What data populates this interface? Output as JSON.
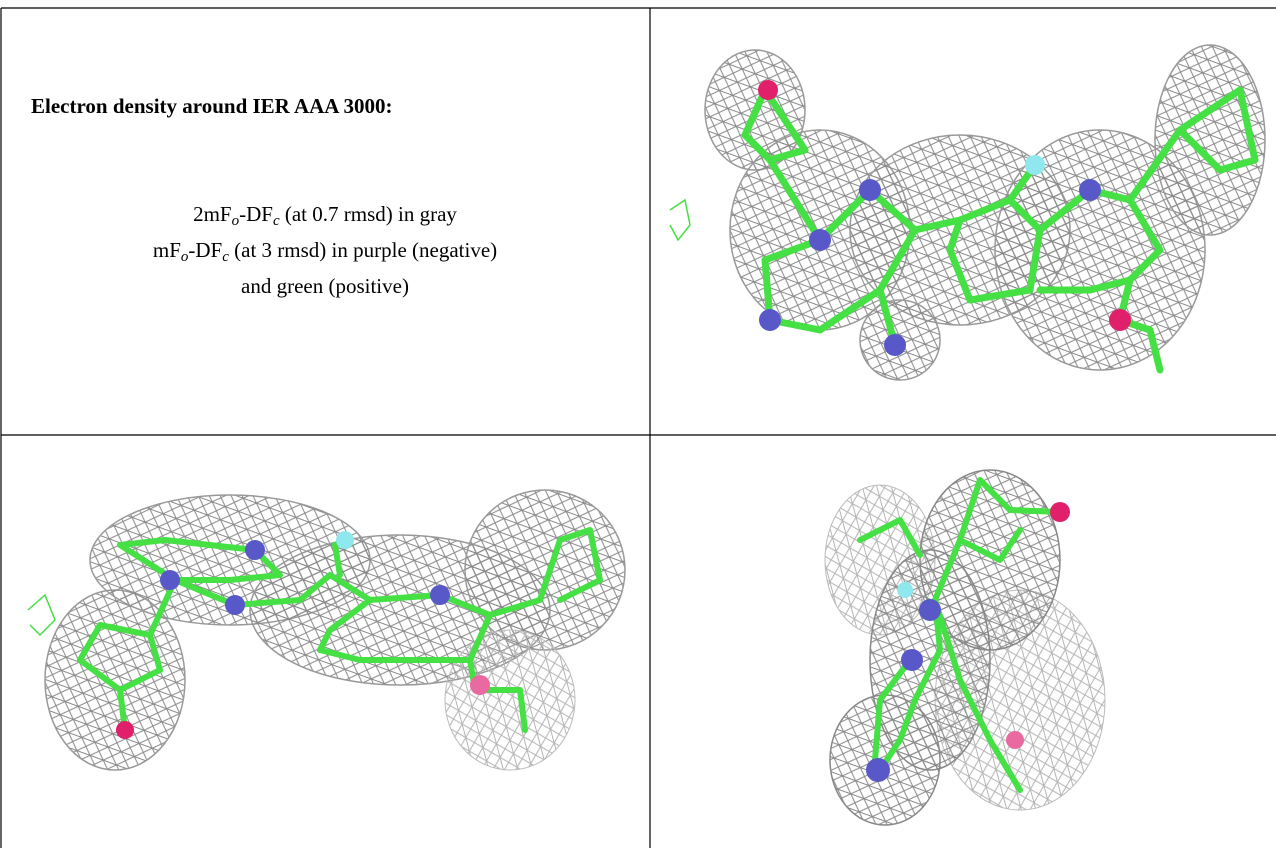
{
  "title": "Electron density around IER AAA 3000:",
  "caption_lines": [
    [
      "2mF",
      "o",
      "-DF",
      "c",
      " (at 0.7 rmsd) in gray"
    ],
    [
      "mF",
      "o",
      "-DF",
      "c",
      " (at 3 rmsd) in purple (negative)"
    ],
    [
      "and green (positive)"
    ]
  ]
}
